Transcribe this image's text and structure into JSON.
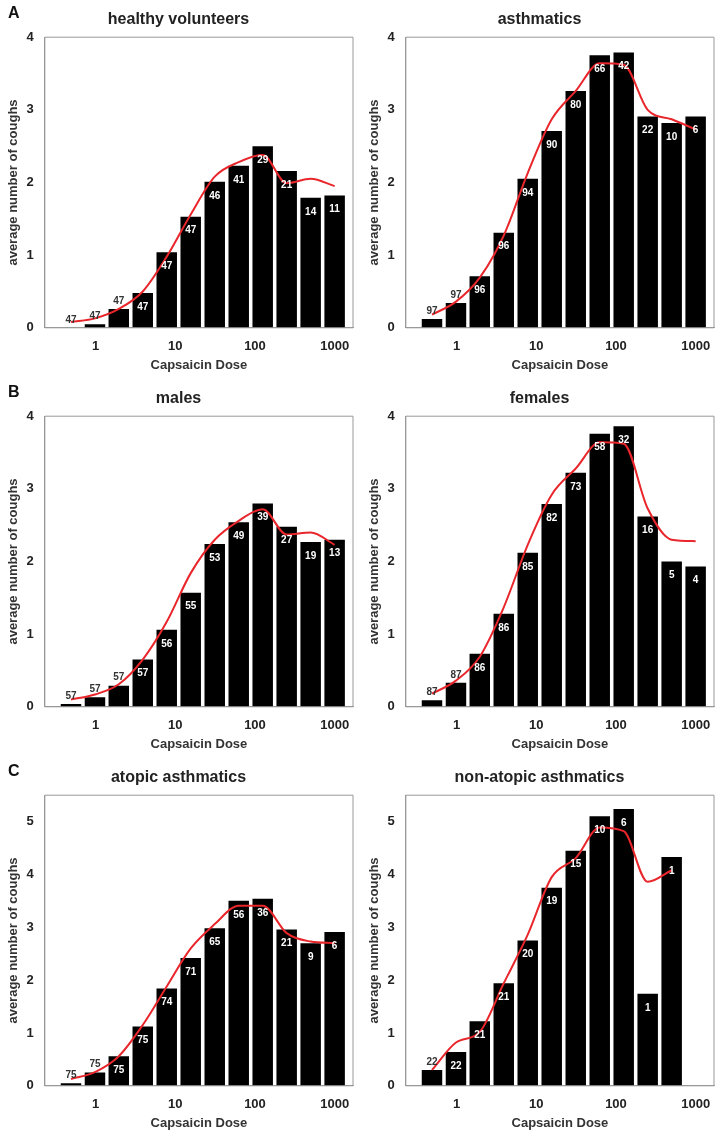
{
  "chart_data": [
    {
      "type": "bar",
      "title": "healthy volunteers",
      "xlabel": "Capsaicin Dose",
      "ylabel": "average number of coughs",
      "log": "x",
      "xlim": [
        0.23,
        1700
      ],
      "xticks": [
        1,
        10,
        100,
        1000
      ],
      "ylim": [
        0,
        4
      ],
      "yticks": [
        0,
        1,
        2,
        3,
        4
      ],
      "grid": false,
      "legend": false,
      "marker": "none",
      "x": [
        0.49,
        0.98,
        1.95,
        3.9,
        7.8,
        15.6,
        31.25,
        62.5,
        125,
        250,
        500,
        1000
      ],
      "series": [
        {
          "color": "#000000",
          "values": [
            0,
            0.05,
            0.26,
            0.48,
            1.04,
            1.53,
            2.01,
            2.23,
            2.5,
            2.16,
            1.79,
            1.82
          ]
        },
        {
          "type": "line",
          "color": "#e8262b",
          "values": [
            0.08,
            0.13,
            0.26,
            0.5,
            0.98,
            1.56,
            2.08,
            2.28,
            2.38,
            1.99,
            2.05,
            1.95
          ]
        }
      ],
      "annotations": [
        "A",
        {
          "text": "47",
          "x": 0.49,
          "y": 0
        },
        {
          "text": "47",
          "x": 0.98,
          "y": 0.05
        },
        {
          "text": "47",
          "x": 1.95,
          "y": 0.26
        },
        {
          "text": "47",
          "x": 3.9,
          "y": 0.48
        },
        {
          "text": "47",
          "x": 7.8,
          "y": 1.04
        },
        {
          "text": "47",
          "x": 15.6,
          "y": 1.53
        },
        {
          "text": "46",
          "x": 31.25,
          "y": 2.01
        },
        {
          "text": "41",
          "x": 62.5,
          "y": 2.23
        },
        {
          "text": "29",
          "x": 125,
          "y": 2.5
        },
        {
          "text": "21",
          "x": 250,
          "y": 2.16
        },
        {
          "text": "14",
          "x": 500,
          "y": 1.79
        },
        {
          "text": "11",
          "x": 1000,
          "y": 1.82
        }
      ]
    },
    {
      "type": "bar",
      "title": "asthmatics",
      "xlabel": "Capsaicin Dose",
      "ylabel": "average number of coughs",
      "log": "x",
      "xlim": [
        0.23,
        1700
      ],
      "xticks": [
        1,
        10,
        100,
        1000
      ],
      "ylim": [
        0,
        4
      ],
      "yticks": [
        0,
        1,
        2,
        3,
        4
      ],
      "grid": false,
      "legend": false,
      "marker": "none",
      "x": [
        0.49,
        0.98,
        1.95,
        3.9,
        7.8,
        15.6,
        31.25,
        62.5,
        125,
        250,
        500,
        1000
      ],
      "series": [
        {
          "color": "#000000",
          "values": [
            0.12,
            0.34,
            0.71,
            1.31,
            2.05,
            2.71,
            3.26,
            3.75,
            3.79,
            2.91,
            2.82,
            2.91
          ]
        },
        {
          "type": "line",
          "color": "#e8262b",
          "values": [
            0.18,
            0.36,
            0.69,
            1.27,
            2.13,
            2.87,
            3.26,
            3.64,
            3.62,
            3.0,
            2.87,
            2.73
          ]
        }
      ],
      "annotations": [
        {
          "text": "97",
          "x": 0.49,
          "y": 0.12
        },
        {
          "text": "97",
          "x": 0.98,
          "y": 0.34
        },
        {
          "text": "96",
          "x": 1.95,
          "y": 0.71
        },
        {
          "text": "96",
          "x": 3.9,
          "y": 1.31
        },
        {
          "text": "94",
          "x": 7.8,
          "y": 2.05
        },
        {
          "text": "90",
          "x": 15.6,
          "y": 2.71
        },
        {
          "text": "80",
          "x": 31.25,
          "y": 3.26
        },
        {
          "text": "66",
          "x": 62.5,
          "y": 3.75
        },
        {
          "text": "42",
          "x": 125,
          "y": 3.79
        },
        {
          "text": "22",
          "x": 250,
          "y": 2.91
        },
        {
          "text": "10",
          "x": 500,
          "y": 2.82
        },
        {
          "text": "6",
          "x": 1000,
          "y": 2.91
        }
      ]
    },
    {
      "type": "bar",
      "title": "males",
      "xlabel": "Capsaicin Dose",
      "ylabel": "average number of coughs",
      "log": "x",
      "xlim": [
        0.23,
        1700
      ],
      "xticks": [
        1,
        10,
        100,
        1000
      ],
      "ylim": [
        0,
        4
      ],
      "yticks": [
        0,
        1,
        2,
        3,
        4
      ],
      "grid": false,
      "legend": false,
      "marker": "none",
      "x": [
        0.49,
        0.98,
        1.95,
        3.9,
        7.8,
        15.6,
        31.25,
        62.5,
        125,
        250,
        500,
        1000
      ],
      "series": [
        {
          "color": "#000000",
          "values": [
            0.04,
            0.13,
            0.29,
            0.65,
            1.06,
            1.57,
            2.24,
            2.54,
            2.8,
            2.48,
            2.27,
            2.3
          ]
        },
        {
          "type": "line",
          "color": "#e8262b",
          "values": [
            0.1,
            0.17,
            0.31,
            0.65,
            1.17,
            1.84,
            2.3,
            2.56,
            2.72,
            2.37,
            2.4,
            2.23
          ]
        }
      ],
      "annotations": [
        "B",
        {
          "text": "57",
          "x": 0.49,
          "y": 0.04
        },
        {
          "text": "57",
          "x": 0.98,
          "y": 0.13
        },
        {
          "text": "57",
          "x": 1.95,
          "y": 0.29
        },
        {
          "text": "57",
          "x": 3.9,
          "y": 0.65
        },
        {
          "text": "56",
          "x": 7.8,
          "y": 1.06
        },
        {
          "text": "55",
          "x": 15.6,
          "y": 1.57
        },
        {
          "text": "53",
          "x": 31.25,
          "y": 2.24
        },
        {
          "text": "49",
          "x": 62.5,
          "y": 2.54
        },
        {
          "text": "39",
          "x": 125,
          "y": 2.8
        },
        {
          "text": "27",
          "x": 250,
          "y": 2.48
        },
        {
          "text": "19",
          "x": 500,
          "y": 2.27
        },
        {
          "text": "13",
          "x": 1000,
          "y": 2.3
        }
      ]
    },
    {
      "type": "bar",
      "title": "females",
      "xlabel": "Capsaicin Dose",
      "ylabel": "average number of coughs",
      "log": "x",
      "xlim": [
        0.23,
        1700
      ],
      "xticks": [
        1,
        10,
        100,
        1000
      ],
      "ylim": [
        0,
        4
      ],
      "yticks": [
        0,
        1,
        2,
        3,
        4
      ],
      "grid": false,
      "legend": false,
      "marker": "none",
      "x": [
        0.49,
        0.98,
        1.95,
        3.9,
        7.8,
        15.6,
        31.25,
        62.5,
        125,
        250,
        500,
        1000
      ],
      "series": [
        {
          "color": "#000000",
          "values": [
            0.09,
            0.33,
            0.73,
            1.28,
            2.12,
            2.79,
            3.22,
            3.76,
            3.86,
            2.62,
            2.0,
            1.93
          ]
        },
        {
          "type": "line",
          "color": "#e8262b",
          "values": [
            0.18,
            0.36,
            0.69,
            1.37,
            2.23,
            2.92,
            3.28,
            3.64,
            3.62,
            2.73,
            2.3,
            2.28
          ]
        }
      ],
      "annotations": [
        {
          "text": "87",
          "x": 0.49,
          "y": 0.09
        },
        {
          "text": "87",
          "x": 0.98,
          "y": 0.33
        },
        {
          "text": "86",
          "x": 1.95,
          "y": 0.73
        },
        {
          "text": "86",
          "x": 3.9,
          "y": 1.28
        },
        {
          "text": "85",
          "x": 7.8,
          "y": 2.12
        },
        {
          "text": "82",
          "x": 15.6,
          "y": 2.79
        },
        {
          "text": "73",
          "x": 31.25,
          "y": 3.22
        },
        {
          "text": "58",
          "x": 62.5,
          "y": 3.76
        },
        {
          "text": "32",
          "x": 125,
          "y": 3.86
        },
        {
          "text": "16",
          "x": 250,
          "y": 2.62
        },
        {
          "text": "5",
          "x": 500,
          "y": 2.0
        },
        {
          "text": "4",
          "x": 1000,
          "y": 1.93
        }
      ]
    },
    {
      "type": "bar",
      "title": "atopic asthmatics",
      "xlabel": "Capsaicin Dose",
      "ylabel": "average number of coughs",
      "log": "x",
      "xlim": [
        0.23,
        1700
      ],
      "xticks": [
        1,
        10,
        100,
        1000
      ],
      "ylim": [
        0,
        5.5
      ],
      "yticks": [
        0,
        1,
        2,
        3,
        4,
        5
      ],
      "grid": false,
      "legend": false,
      "marker": "none",
      "x": [
        0.49,
        0.98,
        1.95,
        3.9,
        7.8,
        15.6,
        31.25,
        62.5,
        125,
        250,
        500,
        1000
      ],
      "series": [
        {
          "color": "#000000",
          "values": [
            0.05,
            0.25,
            0.56,
            1.12,
            1.84,
            2.42,
            2.98,
            3.5,
            3.54,
            2.96,
            2.7,
            2.91
          ]
        },
        {
          "type": "line",
          "color": "#e8262b",
          "values": [
            0.13,
            0.26,
            0.56,
            1.15,
            1.88,
            2.6,
            3.06,
            3.41,
            3.41,
            2.89,
            2.73,
            2.7
          ]
        }
      ],
      "annotations": [
        "C",
        {
          "text": "75",
          "x": 0.49,
          "y": 0.05
        },
        {
          "text": "75",
          "x": 0.98,
          "y": 0.25
        },
        {
          "text": "75",
          "x": 1.95,
          "y": 0.56
        },
        {
          "text": "75",
          "x": 3.9,
          "y": 1.12
        },
        {
          "text": "74",
          "x": 7.8,
          "y": 1.84
        },
        {
          "text": "71",
          "x": 15.6,
          "y": 2.42
        },
        {
          "text": "65",
          "x": 31.25,
          "y": 2.98
        },
        {
          "text": "56",
          "x": 62.5,
          "y": 3.5
        },
        {
          "text": "36",
          "x": 125,
          "y": 3.54
        },
        {
          "text": "21",
          "x": 250,
          "y": 2.96
        },
        {
          "text": "9",
          "x": 500,
          "y": 2.7
        },
        {
          "text": "6",
          "x": 1000,
          "y": 2.91
        }
      ]
    },
    {
      "type": "bar",
      "title": "non-atopic asthmatics",
      "xlabel": "Capsaicin Dose",
      "ylabel": "average number of coughs",
      "log": "x",
      "xlim": [
        0.23,
        1700
      ],
      "xticks": [
        1,
        10,
        100,
        1000
      ],
      "ylim": [
        0,
        5.5
      ],
      "yticks": [
        0,
        1,
        2,
        3,
        4,
        5
      ],
      "grid": false,
      "legend": false,
      "marker": "none",
      "x": [
        0.49,
        0.98,
        1.95,
        3.9,
        7.8,
        15.6,
        31.25,
        62.5,
        125,
        250,
        500
      ],
      "series": [
        {
          "color": "#000000",
          "values": [
            0.3,
            0.64,
            1.22,
            1.94,
            2.75,
            3.75,
            4.45,
            5.1,
            5.24,
            1.74,
            4.33
          ]
        },
        {
          "type": "line",
          "color": "#e8262b",
          "values": [
            0.3,
            0.82,
            1.02,
            1.94,
            2.86,
            3.95,
            4.31,
            4.89,
            4.82,
            3.86,
            4.08
          ]
        }
      ],
      "annotations": [
        {
          "text": "22",
          "x": 0.49,
          "y": 0.3
        },
        {
          "text": "22",
          "x": 0.98,
          "y": 0.64
        },
        {
          "text": "21",
          "x": 1.95,
          "y": 1.22
        },
        {
          "text": "21",
          "x": 3.9,
          "y": 1.94
        },
        {
          "text": "20",
          "x": 7.8,
          "y": 2.75
        },
        {
          "text": "19",
          "x": 15.6,
          "y": 3.75
        },
        {
          "text": "15",
          "x": 31.25,
          "y": 4.45
        },
        {
          "text": "10",
          "x": 62.5,
          "y": 5.1
        },
        {
          "text": "6",
          "x": 125,
          "y": 5.24
        },
        {
          "text": "1",
          "x": 250,
          "y": 1.74
        },
        {
          "text": "1",
          "x": 500,
          "y": 4.33
        }
      ]
    }
  ]
}
